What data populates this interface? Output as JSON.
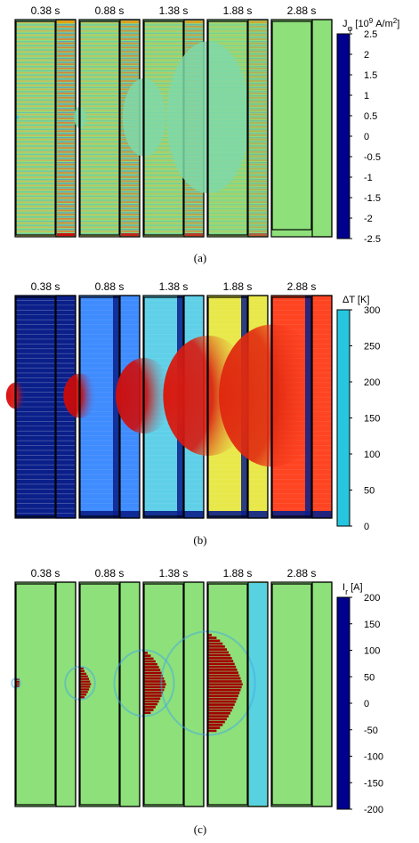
{
  "figure": {
    "panels": [
      {
        "id": "a",
        "caption": "(a)",
        "quantity": "current_density",
        "colorbar": {
          "label_base": "J",
          "label_sub": "φ",
          "label_unit_pre": "[10",
          "label_unit_exp1": "9",
          "label_unit_mid": " A/m",
          "label_unit_exp2": "2",
          "label_unit_post": "]",
          "min": -2.5,
          "max": 2.5,
          "ticks": [
            "2.5",
            "2",
            "1.5",
            "1",
            "0.5",
            "0",
            "-0.5",
            "-1",
            "-1.5",
            "-2",
            "-2.5"
          ],
          "colormap": "jet"
        },
        "times": [
          "0.38 s",
          "0.88 s",
          "1.38 s",
          "1.88 s",
          "2.88 s"
        ],
        "frames": [
          {
            "stripe_strength": 1.0,
            "zone_radius": 0.0,
            "bg": "#8ee07a"
          },
          {
            "stripe_strength": 0.85,
            "zone_radius": 0.05,
            "bg": "#8ee07a"
          },
          {
            "stripe_strength": 0.75,
            "zone_radius": 0.18,
            "bg": "#8ee07a"
          },
          {
            "stripe_strength": 0.55,
            "zone_radius": 0.35,
            "bg": "#8ee07a"
          },
          {
            "stripe_strength": 0.0,
            "zone_radius": 0.0,
            "bg": "#8ee07a"
          }
        ]
      },
      {
        "id": "b",
        "caption": "(b)",
        "quantity": "temperature",
        "colorbar": {
          "label": "ΔT [K]",
          "min": 0,
          "max": 300,
          "ticks": [
            "300",
            "250",
            "200",
            "150",
            "100",
            "50",
            "0"
          ],
          "colormap": "temperature"
        },
        "times": [
          "0.38 s",
          "0.88 s",
          "1.38 s",
          "1.88 s",
          "2.88 s"
        ],
        "frames": [
          {
            "bg": "#0a1f8a",
            "hot_radius": 0.06,
            "hot_color": "#d81010"
          },
          {
            "bg": "#3f8cff",
            "hot_radius": 0.1,
            "hot_color": "#c80a0a"
          },
          {
            "bg": "#5fd0e8",
            "hot_radius": 0.17,
            "hot_color": "#cc1010"
          },
          {
            "bg": "#e8e84a",
            "hot_radius": 0.27,
            "hot_color": "#d81a10"
          },
          {
            "bg": "#ff4422",
            "hot_radius": 0.32,
            "hot_color": "#e02a10"
          }
        ]
      },
      {
        "id": "c",
        "caption": "(c)",
        "quantity": "radial_current",
        "colorbar": {
          "label_base": "I",
          "label_sub": "r",
          "label_unit": " [A]",
          "min": -200,
          "max": 200,
          "ticks": [
            "200",
            "150",
            "100",
            "50",
            "0",
            "-50",
            "-100",
            "-150",
            "-200"
          ],
          "colormap": "jet"
        },
        "times": [
          "0.38 s",
          "0.88 s",
          "1.38 s",
          "1.88 s",
          "2.88 s"
        ],
        "frames": [
          {
            "bg": "#8ee07a",
            "hot_radius": 0.02
          },
          {
            "bg": "#8ee07a",
            "hot_radius": 0.07
          },
          {
            "bg": "#8ee07a",
            "hot_radius": 0.14
          },
          {
            "bg": "#8ee07a",
            "hot_radius": 0.22
          },
          {
            "bg": "#8ee07a",
            "hot_radius": 0.0
          }
        ]
      }
    ]
  }
}
